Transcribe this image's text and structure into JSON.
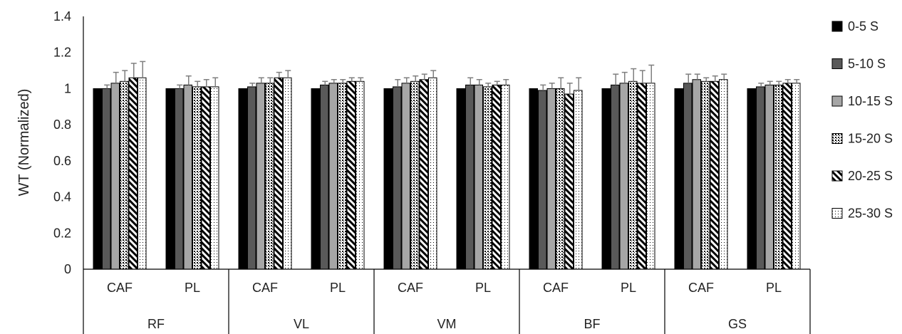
{
  "chart_data": {
    "type": "bar",
    "ylabel": "WT (Normalized)",
    "xlabel": "",
    "ylim": [
      0,
      1.4
    ],
    "yticks": [
      "0",
      "0.2",
      "0.4",
      "0.6",
      "0.8",
      "1",
      "1.2",
      "1.4"
    ],
    "ytick_values": [
      0,
      0.2,
      0.4,
      0.6,
      0.8,
      1.0,
      1.2,
      1.4
    ],
    "grid": false,
    "legend_position": "right",
    "muscles": [
      "RF",
      "VL",
      "VM",
      "BF",
      "GS"
    ],
    "conditions": [
      "CAF",
      "PL"
    ],
    "categories": [
      "RF CAF",
      "RF PL",
      "VL CAF",
      "VL PL",
      "VM CAF",
      "VM PL",
      "BF CAF",
      "BF PL",
      "GS CAF",
      "GS PL"
    ],
    "series": [
      {
        "name": "0-5 S",
        "pattern": "black",
        "values": [
          1.0,
          1.0,
          1.0,
          1.0,
          1.0,
          1.0,
          1.0,
          1.0,
          1.0,
          1.0
        ],
        "errors": [
          0.0,
          0.0,
          0.0,
          0.0,
          0.0,
          0.0,
          0.0,
          0.0,
          0.0,
          0.0
        ]
      },
      {
        "name": "5-10 S",
        "pattern": "darkgray",
        "values": [
          1.0,
          1.0,
          1.01,
          1.02,
          1.01,
          1.02,
          0.99,
          1.02,
          1.03,
          1.01
        ],
        "errors": [
          0.02,
          0.02,
          0.02,
          0.02,
          0.04,
          0.04,
          0.03,
          0.06,
          0.05,
          0.02
        ]
      },
      {
        "name": "10-15 S",
        "pattern": "lightgray",
        "values": [
          1.03,
          1.02,
          1.03,
          1.03,
          1.03,
          1.02,
          1.0,
          1.03,
          1.05,
          1.02
        ],
        "errors": [
          0.06,
          0.05,
          0.03,
          0.02,
          0.03,
          0.03,
          0.03,
          0.06,
          0.03,
          0.02
        ]
      },
      {
        "name": "15-20 S",
        "pattern": "dots",
        "values": [
          1.04,
          1.01,
          1.03,
          1.03,
          1.04,
          1.01,
          1.0,
          1.04,
          1.04,
          1.02
        ],
        "errors": [
          0.06,
          0.03,
          0.03,
          0.02,
          0.03,
          0.02,
          0.06,
          0.07,
          0.02,
          0.02
        ]
      },
      {
        "name": "20-25 S",
        "pattern": "stripes",
        "values": [
          1.06,
          1.01,
          1.06,
          1.04,
          1.05,
          1.02,
          0.97,
          1.03,
          1.04,
          1.03
        ],
        "errors": [
          0.08,
          0.04,
          0.03,
          0.02,
          0.03,
          0.02,
          0.06,
          0.07,
          0.03,
          0.02
        ]
      },
      {
        "name": "25-30 S",
        "pattern": "sparsedots",
        "values": [
          1.06,
          1.01,
          1.06,
          1.04,
          1.06,
          1.02,
          0.99,
          1.03,
          1.05,
          1.03
        ],
        "errors": [
          0.09,
          0.05,
          0.04,
          0.02,
          0.04,
          0.03,
          0.07,
          0.1,
          0.03,
          0.02
        ]
      }
    ],
    "colors": {
      "black": "#000000",
      "darkgray": "#595959",
      "lightgray": "#a6a6a6",
      "errorbar": "#7f7f7f",
      "axis": "#000000"
    }
  }
}
